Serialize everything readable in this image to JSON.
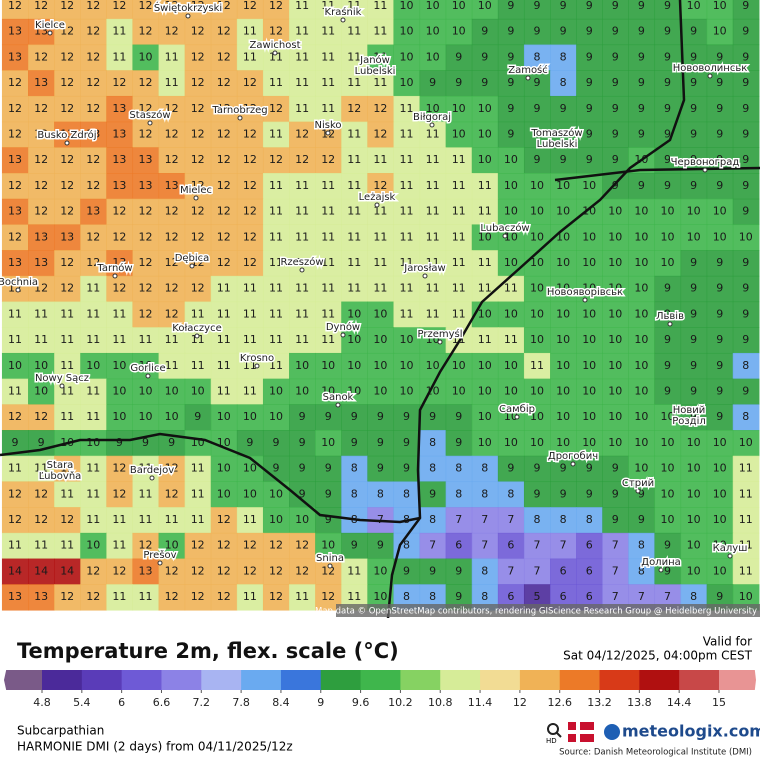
{
  "map": {
    "grid": [
      [
        12,
        12,
        12,
        12,
        12,
        12,
        12,
        12,
        12,
        12,
        12,
        11,
        11,
        11,
        11,
        10,
        10,
        10,
        10,
        9,
        9,
        9,
        9,
        9,
        9,
        9,
        10,
        10,
        9
      ],
      [
        13,
        13,
        12,
        12,
        11,
        12,
        12,
        12,
        12,
        11,
        12,
        11,
        11,
        11,
        11,
        10,
        10,
        10,
        9,
        9,
        9,
        9,
        9,
        9,
        9,
        9,
        9,
        10,
        9
      ],
      [
        13,
        12,
        12,
        12,
        11,
        10,
        11,
        12,
        12,
        11,
        11,
        11,
        11,
        11,
        10,
        10,
        10,
        9,
        9,
        9,
        8,
        8,
        9,
        9,
        9,
        9,
        9,
        9,
        9
      ],
      [
        12,
        13,
        12,
        12,
        12,
        12,
        11,
        12,
        12,
        12,
        11,
        11,
        11,
        11,
        11,
        10,
        9,
        9,
        9,
        9,
        9,
        8,
        9,
        9,
        9,
        9,
        9,
        9,
        9
      ],
      [
        12,
        12,
        12,
        12,
        13,
        12,
        12,
        12,
        12,
        12,
        12,
        11,
        11,
        12,
        12,
        11,
        10,
        10,
        10,
        9,
        9,
        9,
        9,
        9,
        9,
        9,
        9,
        9,
        9
      ],
      [
        12,
        12,
        13,
        13,
        13,
        12,
        12,
        12,
        12,
        12,
        11,
        12,
        12,
        11,
        12,
        11,
        11,
        10,
        10,
        9,
        9,
        9,
        9,
        9,
        9,
        9,
        9,
        9,
        9
      ],
      [
        13,
        12,
        12,
        12,
        13,
        13,
        12,
        12,
        12,
        12,
        12,
        12,
        12,
        11,
        11,
        11,
        11,
        11,
        10,
        10,
        9,
        9,
        9,
        9,
        10,
        9,
        9,
        9,
        9
      ],
      [
        12,
        12,
        12,
        12,
        13,
        13,
        13,
        12,
        12,
        12,
        11,
        11,
        11,
        11,
        12,
        11,
        11,
        11,
        11,
        10,
        10,
        10,
        10,
        9,
        9,
        9,
        9,
        9,
        9
      ],
      [
        13,
        12,
        12,
        13,
        12,
        12,
        12,
        12,
        12,
        12,
        11,
        11,
        11,
        11,
        11,
        11,
        11,
        11,
        11,
        10,
        10,
        10,
        10,
        10,
        10,
        10,
        10,
        10,
        9
      ],
      [
        12,
        13,
        13,
        12,
        12,
        12,
        12,
        12,
        12,
        12,
        11,
        11,
        11,
        11,
        11,
        11,
        11,
        11,
        10,
        10,
        10,
        10,
        10,
        10,
        10,
        10,
        10,
        10,
        10
      ],
      [
        13,
        13,
        12,
        12,
        13,
        12,
        12,
        12,
        12,
        12,
        11,
        11,
        11,
        11,
        11,
        11,
        11,
        11,
        11,
        10,
        10,
        10,
        10,
        10,
        10,
        10,
        9,
        9,
        9
      ],
      [
        12,
        12,
        12,
        11,
        12,
        12,
        12,
        12,
        11,
        11,
        11,
        11,
        11,
        11,
        11,
        11,
        11,
        11,
        11,
        11,
        10,
        10,
        10,
        10,
        10,
        9,
        9,
        9,
        9
      ],
      [
        11,
        11,
        11,
        11,
        11,
        12,
        12,
        11,
        11,
        11,
        11,
        11,
        11,
        10,
        10,
        11,
        11,
        11,
        10,
        10,
        10,
        10,
        10,
        10,
        10,
        9,
        9,
        9,
        9
      ],
      [
        11,
        11,
        11,
        11,
        11,
        11,
        11,
        11,
        11,
        11,
        11,
        11,
        11,
        10,
        10,
        10,
        10,
        11,
        11,
        11,
        10,
        10,
        10,
        10,
        10,
        9,
        9,
        9,
        9
      ],
      [
        10,
        10,
        11,
        10,
        10,
        10,
        11,
        11,
        11,
        11,
        11,
        10,
        10,
        10,
        10,
        10,
        10,
        10,
        10,
        10,
        11,
        10,
        10,
        10,
        10,
        9,
        9,
        9,
        8
      ],
      [
        11,
        10,
        11,
        11,
        10,
        10,
        10,
        10,
        11,
        11,
        10,
        10,
        10,
        10,
        10,
        10,
        10,
        10,
        10,
        10,
        10,
        10,
        10,
        10,
        10,
        9,
        9,
        9,
        9
      ],
      [
        12,
        12,
        11,
        11,
        10,
        10,
        10,
        9,
        10,
        10,
        10,
        9,
        9,
        9,
        9,
        9,
        9,
        9,
        10,
        10,
        10,
        10,
        10,
        10,
        10,
        10,
        9,
        9,
        8
      ],
      [
        9,
        9,
        10,
        10,
        9,
        9,
        9,
        10,
        10,
        9,
        9,
        9,
        10,
        9,
        9,
        9,
        8,
        9,
        10,
        10,
        10,
        10,
        10,
        10,
        10,
        10,
        10,
        10,
        10
      ],
      [
        11,
        11,
        12,
        11,
        12,
        11,
        12,
        11,
        10,
        10,
        9,
        9,
        9,
        8,
        9,
        9,
        8,
        8,
        8,
        9,
        9,
        9,
        9,
        9,
        10,
        10,
        10,
        10,
        11
      ],
      [
        12,
        12,
        11,
        11,
        12,
        11,
        12,
        11,
        10,
        10,
        10,
        9,
        9,
        8,
        8,
        8,
        9,
        8,
        8,
        8,
        9,
        9,
        9,
        9,
        9,
        10,
        10,
        10,
        11
      ],
      [
        12,
        12,
        12,
        11,
        11,
        11,
        11,
        11,
        12,
        11,
        10,
        10,
        9,
        8,
        7,
        8,
        8,
        7,
        7,
        7,
        8,
        8,
        8,
        9,
        9,
        10,
        10,
        10,
        11
      ],
      [
        11,
        11,
        11,
        10,
        11,
        12,
        10,
        12,
        12,
        12,
        12,
        12,
        10,
        9,
        9,
        8,
        7,
        6,
        7,
        6,
        7,
        7,
        6,
        7,
        8,
        9,
        10,
        10,
        11
      ],
      [
        14,
        14,
        14,
        12,
        12,
        13,
        12,
        12,
        12,
        12,
        12,
        12,
        12,
        11,
        10,
        9,
        9,
        9,
        8,
        7,
        7,
        6,
        6,
        7,
        8,
        9,
        10,
        10,
        11
      ],
      [
        13,
        13,
        12,
        12,
        11,
        11,
        12,
        12,
        12,
        11,
        12,
        11,
        12,
        11,
        10,
        8,
        8,
        9,
        8,
        6,
        5,
        6,
        6,
        7,
        7,
        7,
        8,
        9,
        10
      ]
    ],
    "places": [
      "Kielce",
      "Świętokrzyski",
      "Kraśnik",
      "Zawichost",
      "Janów Lubelski",
      "Zamość",
      "Нововолинськ",
      "Busko Zdrój",
      "Staszów",
      "Tarnobrzeg",
      "Nisko",
      "Biłgoraj",
      "Tomaszów Lubelski",
      "Червоноград",
      "Mielec",
      "Leżajsk",
      "Lubaczów",
      "Tarnów",
      "Dębica",
      "Rzeszów",
      "Jarosław",
      "Bochnia",
      "Новояворівськ",
      "Львів",
      "Kołaczyce",
      "Dynów",
      "Przemyśl",
      "Krosno",
      "Gorlice",
      "Nowy Sącz",
      "Sanok",
      "Самбір",
      "Новий Розділ",
      "Дрогобич",
      "Stara Ľubovňa",
      "Bardejov",
      "Стрий",
      "Prešov",
      "Snina",
      "Долина",
      "Калуш"
    ],
    "attribution": "Map data © OpenStreetMap contributors, rendering GIScience Research Group @ Heidelberg University"
  },
  "legend": {
    "title": "Temperature 2m, flex. scale (°C)",
    "ticks": [
      4.8,
      5.4,
      6,
      6.6,
      7.2,
      7.8,
      8.4,
      9,
      9.6,
      10.2,
      10.8,
      11.4,
      12,
      12.6,
      13.2,
      13.8,
      14.4,
      15
    ],
    "colors": [
      "#7a5a88",
      "#4b2a9a",
      "#5a3cb8",
      "#6e5ad6",
      "#8c82e6",
      "#a8b4f2",
      "#6aaaf0",
      "#3a76dc",
      "#2e9e3e",
      "#3fb64c",
      "#86d262",
      "#d6ec98",
      "#f2dc94",
      "#f0b256",
      "#ec7a28",
      "#d83a18",
      "#b01010",
      "#c84848",
      "#e89494"
    ]
  },
  "header": {
    "valid_label": "Valid for",
    "valid_time": "Sat 04/12/2025, 04:00pm CEST"
  },
  "footer": {
    "region": "Subcarpathian",
    "model": "HARMONIE DMI (2 days)  from  04/11/2025/12z",
    "hd": "HD",
    "brand": "meteologix.com",
    "source": "Source: Danish Meteorological Institute (DMI)"
  }
}
